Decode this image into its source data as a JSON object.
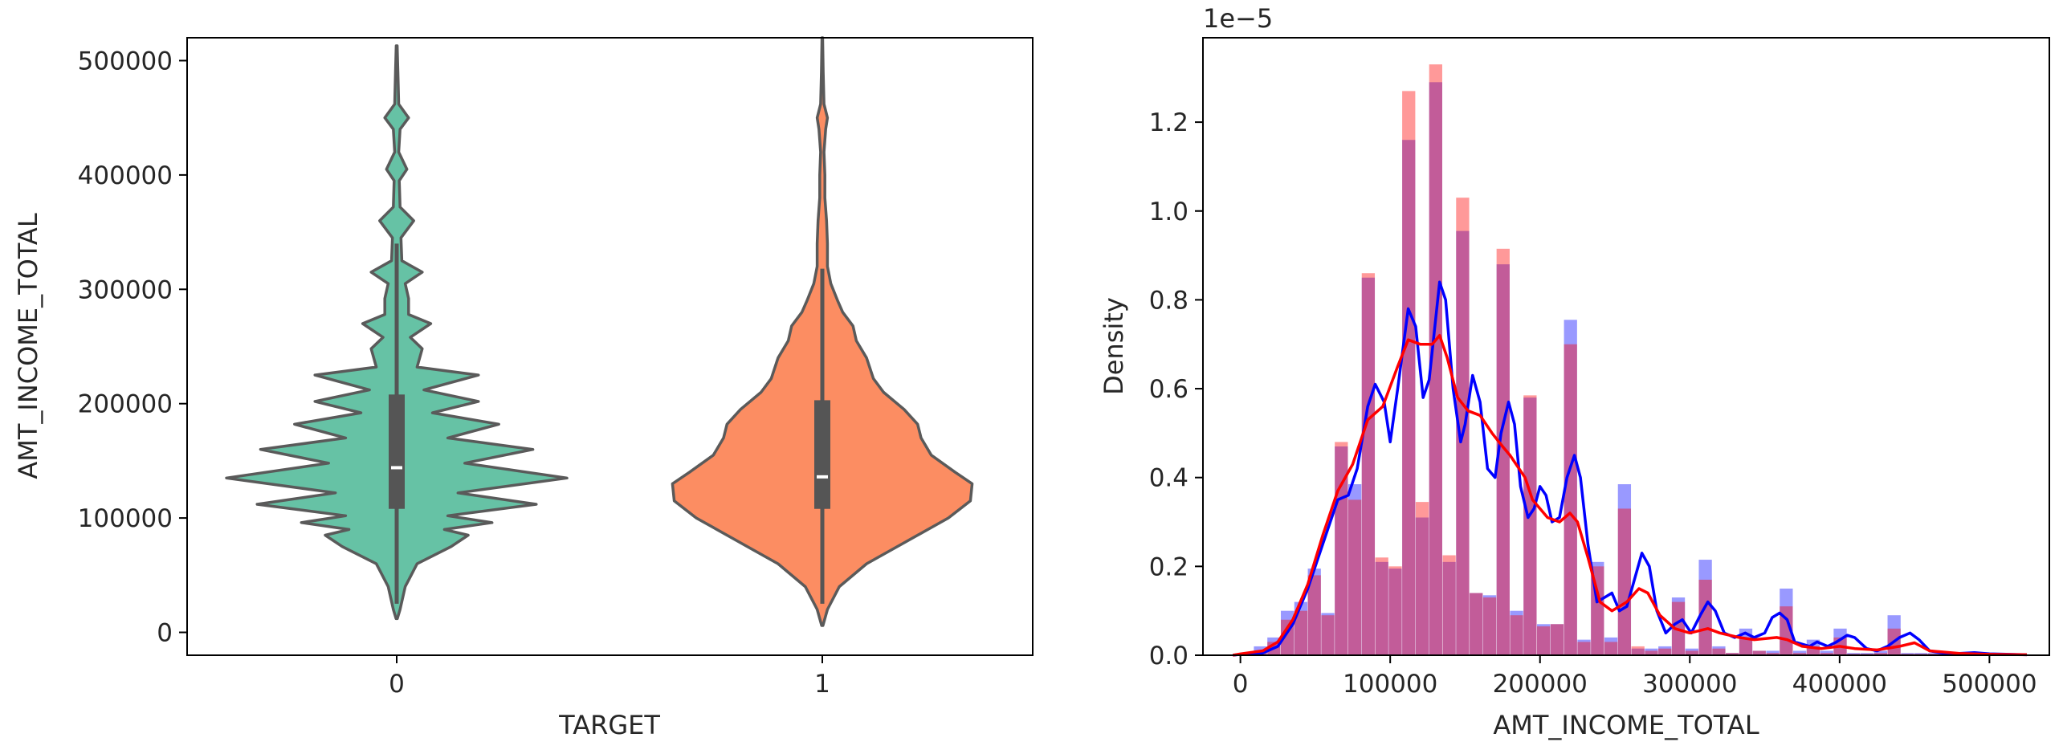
{
  "chart_data": [
    {
      "type": "violin",
      "xlabel": "TARGET",
      "ylabel": "AMT_INCOME_TOTAL",
      "categories": [
        "0",
        "1"
      ],
      "ylim": [
        -20000,
        520000
      ],
      "yticks": [
        0,
        100000,
        200000,
        300000,
        400000,
        500000
      ],
      "yticklabels": [
        "0",
        "100000",
        "200000",
        "300000",
        "400000",
        "500000"
      ],
      "colors": [
        "#66c2a5",
        "#fc8d62"
      ],
      "outline_color": "#5a5a5a",
      "violins": [
        {
          "category": "0",
          "min": 12000,
          "max": 513000,
          "q1": 108000,
          "median": 144000,
          "q3": 208000,
          "whisker_low": 25000,
          "whisker_high": 340000,
          "profile": [
            [
              12000,
              0.004
            ],
            [
              20000,
              0.02
            ],
            [
              40000,
              0.05
            ],
            [
              60000,
              0.12
            ],
            [
              75000,
              0.32
            ],
            [
              85000,
              0.42
            ],
            [
              90000,
              0.28
            ],
            [
              96000,
              0.56
            ],
            [
              102000,
              0.3
            ],
            [
              112000,
              0.82
            ],
            [
              122000,
              0.36
            ],
            [
              135000,
              1.0
            ],
            [
              148000,
              0.4
            ],
            [
              160000,
              0.8
            ],
            [
              170000,
              0.3
            ],
            [
              182000,
              0.6
            ],
            [
              192000,
              0.21
            ],
            [
              202000,
              0.48
            ],
            [
              212000,
              0.16
            ],
            [
              225000,
              0.48
            ],
            [
              232000,
              0.12
            ],
            [
              248000,
              0.15
            ],
            [
              258000,
              0.08
            ],
            [
              270000,
              0.2
            ],
            [
              278000,
              0.07
            ],
            [
              292000,
              0.07
            ],
            [
              305000,
              0.05
            ],
            [
              315000,
              0.15
            ],
            [
              325000,
              0.03
            ],
            [
              345000,
              0.025
            ],
            [
              360000,
              0.1
            ],
            [
              372000,
              0.02
            ],
            [
              395000,
              0.015
            ],
            [
              405000,
              0.06
            ],
            [
              420000,
              0.012
            ],
            [
              440000,
              0.02
            ],
            [
              450000,
              0.07
            ],
            [
              462000,
              0.012
            ],
            [
              490000,
              0.007
            ],
            [
              513000,
              0.003
            ]
          ]
        },
        {
          "category": "1",
          "min": 6000,
          "max": 520000,
          "q1": 108000,
          "median": 136000,
          "q3": 203000,
          "whisker_low": 25000,
          "whisker_high": 318000,
          "profile": [
            [
              6000,
              0.004
            ],
            [
              20000,
              0.03
            ],
            [
              40000,
              0.1
            ],
            [
              60000,
              0.26
            ],
            [
              80000,
              0.5
            ],
            [
              100000,
              0.74
            ],
            [
              115000,
              0.87
            ],
            [
              130000,
              0.88
            ],
            [
              140000,
              0.78
            ],
            [
              155000,
              0.64
            ],
            [
              170000,
              0.58
            ],
            [
              182000,
              0.56
            ],
            [
              195000,
              0.48
            ],
            [
              210000,
              0.36
            ],
            [
              222000,
              0.3
            ],
            [
              240000,
              0.26
            ],
            [
              255000,
              0.2
            ],
            [
              268000,
              0.18
            ],
            [
              280000,
              0.12
            ],
            [
              290000,
              0.09
            ],
            [
              305000,
              0.05
            ],
            [
              320000,
              0.03
            ],
            [
              340000,
              0.03
            ],
            [
              360000,
              0.025
            ],
            [
              380000,
              0.015
            ],
            [
              400000,
              0.015
            ],
            [
              420000,
              0.01
            ],
            [
              440000,
              0.02
            ],
            [
              450000,
              0.03
            ],
            [
              462000,
              0.01
            ],
            [
              490000,
              0.005
            ],
            [
              520000,
              0.002
            ]
          ]
        }
      ]
    },
    {
      "type": "histogram",
      "xlabel": "AMT_INCOME_TOTAL",
      "ylabel": "Density",
      "offset_label": "1e−5",
      "xlim": [
        -25000,
        540000
      ],
      "ylim": [
        0,
        1.39
      ],
      "xticks": [
        0,
        100000,
        200000,
        300000,
        400000,
        500000
      ],
      "xticklabels": [
        "0",
        "100000",
        "200000",
        "300000",
        "400000",
        "500000"
      ],
      "yticks": [
        0.0,
        0.2,
        0.4,
        0.6,
        0.8,
        1.0,
        1.2
      ],
      "yticklabels": [
        "0.0",
        "0.2",
        "0.4",
        "0.6",
        "0.8",
        "1.0",
        "1.2"
      ],
      "bin_start": 0,
      "bin_width": 9000,
      "series": [
        {
          "color": "#0000ff",
          "bar_alpha": 0.4,
          "hist": [
            0.002,
            0.02,
            0.04,
            0.1,
            0.12,
            0.195,
            0.095,
            0.47,
            0.385,
            0.85,
            0.21,
            0.195,
            1.16,
            0.31,
            1.29,
            0.21,
            0.955,
            0.14,
            0.135,
            0.88,
            0.1,
            0.58,
            0.07,
            0.07,
            0.755,
            0.035,
            0.21,
            0.04,
            0.385,
            0.015,
            0.015,
            0.02,
            0.13,
            0.015,
            0.215,
            0.02,
            0.005,
            0.06,
            0.01,
            0.01,
            0.15,
            0.01,
            0.035,
            0.01,
            0.06,
            0.005,
            0.005,
            0.01,
            0.09,
            0.005,
            0.005,
            0.005,
            0.008,
            0.002,
            0.002
          ],
          "kde": [
            [
              -5000,
              0.0
            ],
            [
              0,
              0.002
            ],
            [
              15000,
              0.005
            ],
            [
              25000,
              0.02
            ],
            [
              35000,
              0.07
            ],
            [
              45000,
              0.15
            ],
            [
              55000,
              0.25
            ],
            [
              65000,
              0.35
            ],
            [
              72000,
              0.36
            ],
            [
              78000,
              0.42
            ],
            [
              85000,
              0.56
            ],
            [
              90000,
              0.61
            ],
            [
              96000,
              0.57
            ],
            [
              100000,
              0.48
            ],
            [
              105000,
              0.6
            ],
            [
              112000,
              0.78
            ],
            [
              117000,
              0.74
            ],
            [
              122000,
              0.58
            ],
            [
              126000,
              0.62
            ],
            [
              133000,
              0.84
            ],
            [
              137000,
              0.8
            ],
            [
              142000,
              0.6
            ],
            [
              147000,
              0.48
            ],
            [
              150000,
              0.52
            ],
            [
              155000,
              0.63
            ],
            [
              160000,
              0.57
            ],
            [
              165000,
              0.42
            ],
            [
              170000,
              0.4
            ],
            [
              174000,
              0.5
            ],
            [
              179000,
              0.57
            ],
            [
              183000,
              0.52
            ],
            [
              187000,
              0.38
            ],
            [
              192000,
              0.31
            ],
            [
              196000,
              0.33
            ],
            [
              200000,
              0.38
            ],
            [
              204000,
              0.36
            ],
            [
              208000,
              0.3
            ],
            [
              213000,
              0.31
            ],
            [
              218000,
              0.4
            ],
            [
              223000,
              0.45
            ],
            [
              227000,
              0.4
            ],
            [
              232000,
              0.25
            ],
            [
              238000,
              0.12
            ],
            [
              243000,
              0.13
            ],
            [
              248000,
              0.14
            ],
            [
              253000,
              0.1
            ],
            [
              258000,
              0.11
            ],
            [
              263000,
              0.17
            ],
            [
              268000,
              0.23
            ],
            [
              273000,
              0.2
            ],
            [
              278000,
              0.1
            ],
            [
              284000,
              0.05
            ],
            [
              290000,
              0.07
            ],
            [
              295000,
              0.08
            ],
            [
              301000,
              0.05
            ],
            [
              307000,
              0.09
            ],
            [
              312000,
              0.12
            ],
            [
              317000,
              0.1
            ],
            [
              323000,
              0.05
            ],
            [
              330000,
              0.04
            ],
            [
              337000,
              0.05
            ],
            [
              343000,
              0.04
            ],
            [
              350000,
              0.05
            ],
            [
              355000,
              0.085
            ],
            [
              360000,
              0.095
            ],
            [
              365000,
              0.08
            ],
            [
              370000,
              0.03
            ],
            [
              380000,
              0.02
            ],
            [
              385000,
              0.03
            ],
            [
              392000,
              0.02
            ],
            [
              398000,
              0.03
            ],
            [
              405000,
              0.045
            ],
            [
              410000,
              0.04
            ],
            [
              418000,
              0.015
            ],
            [
              425000,
              0.01
            ],
            [
              432000,
              0.02
            ],
            [
              440000,
              0.04
            ],
            [
              447000,
              0.05
            ],
            [
              453000,
              0.035
            ],
            [
              460000,
              0.01
            ],
            [
              470000,
              0.004
            ],
            [
              480000,
              0.004
            ],
            [
              490000,
              0.006
            ],
            [
              500000,
              0.003
            ],
            [
              525000,
              0.001
            ]
          ]
        },
        {
          "color": "#ff0000",
          "bar_alpha": 0.4,
          "hist": [
            0.002,
            0.01,
            0.03,
            0.08,
            0.1,
            0.18,
            0.09,
            0.48,
            0.35,
            0.86,
            0.22,
            0.2,
            1.27,
            0.345,
            1.33,
            0.225,
            1.03,
            0.14,
            0.13,
            0.915,
            0.09,
            0.585,
            0.065,
            0.07,
            0.7,
            0.03,
            0.2,
            0.03,
            0.33,
            0.02,
            0.01,
            0.015,
            0.12,
            0.01,
            0.17,
            0.015,
            0.005,
            0.04,
            0.01,
            0.005,
            0.11,
            0.005,
            0.02,
            0.005,
            0.04,
            0.003,
            0.003,
            0.005,
            0.06,
            0.003,
            0.003,
            0.003,
            0.005,
            0.002,
            0.002
          ],
          "kde": [
            [
              -5000,
              0.0
            ],
            [
              0,
              0.003
            ],
            [
              15000,
              0.01
            ],
            [
              25000,
              0.03
            ],
            [
              35000,
              0.08
            ],
            [
              45000,
              0.16
            ],
            [
              55000,
              0.27
            ],
            [
              65000,
              0.37
            ],
            [
              75000,
              0.43
            ],
            [
              85000,
              0.53
            ],
            [
              95000,
              0.56
            ],
            [
              105000,
              0.65
            ],
            [
              112000,
              0.71
            ],
            [
              120000,
              0.7
            ],
            [
              128000,
              0.7
            ],
            [
              133000,
              0.72
            ],
            [
              138000,
              0.67
            ],
            [
              145000,
              0.58
            ],
            [
              152000,
              0.55
            ],
            [
              160000,
              0.54
            ],
            [
              168000,
              0.5
            ],
            [
              175000,
              0.47
            ],
            [
              180000,
              0.45
            ],
            [
              190000,
              0.4
            ],
            [
              195000,
              0.35
            ],
            [
              205000,
              0.31
            ],
            [
              213000,
              0.3
            ],
            [
              220000,
              0.32
            ],
            [
              225000,
              0.3
            ],
            [
              232000,
              0.22
            ],
            [
              240000,
              0.12
            ],
            [
              248000,
              0.1
            ],
            [
              258000,
              0.12
            ],
            [
              266000,
              0.15
            ],
            [
              272000,
              0.14
            ],
            [
              280000,
              0.09
            ],
            [
              290000,
              0.06
            ],
            [
              300000,
              0.05
            ],
            [
              312000,
              0.06
            ],
            [
              320000,
              0.05
            ],
            [
              333000,
              0.04
            ],
            [
              343000,
              0.035
            ],
            [
              358000,
              0.04
            ],
            [
              365000,
              0.035
            ],
            [
              375000,
              0.02
            ],
            [
              388000,
              0.015
            ],
            [
              400000,
              0.02
            ],
            [
              410000,
              0.015
            ],
            [
              425000,
              0.012
            ],
            [
              440000,
              0.02
            ],
            [
              450000,
              0.028
            ],
            [
              460000,
              0.01
            ],
            [
              480000,
              0.004
            ],
            [
              500000,
              0.002
            ],
            [
              525000,
              0.001
            ]
          ]
        }
      ]
    }
  ]
}
